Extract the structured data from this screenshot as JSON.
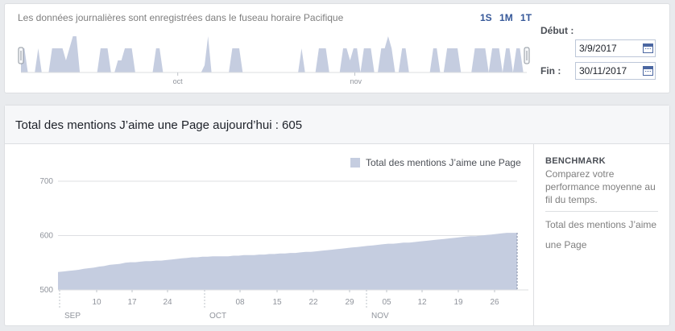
{
  "overview": {
    "info_text": "Les données journalières sont enregistrées dans le fuseau horaire Pacifique",
    "range_buttons": [
      "1S",
      "1M",
      "1T"
    ],
    "month_labels": [
      "oct",
      "nov"
    ],
    "start_label": "Début :",
    "start_value": "3/9/2017",
    "end_label": "Fin :",
    "end_value": "30/11/2017",
    "sparkline": [
      1,
      1,
      0,
      0,
      0,
      1,
      0,
      0,
      0,
      1,
      1,
      1,
      1,
      0.5,
      1,
      1.5,
      1.5,
      0,
      0,
      0,
      0,
      0,
      0,
      1,
      1,
      1,
      0,
      0,
      0.5,
      0.5,
      1,
      1,
      1,
      0,
      0,
      0,
      0,
      0,
      0,
      1,
      1,
      0,
      0,
      0,
      0,
      0,
      0,
      0,
      0,
      0,
      0,
      0,
      0,
      0.3,
      1.5,
      0,
      0,
      0,
      0,
      0,
      0,
      1,
      1,
      1,
      0,
      0,
      0,
      0,
      0,
      0,
      0,
      0,
      0,
      0,
      0,
      0,
      0,
      0,
      0,
      0,
      0,
      1,
      0,
      0,
      0,
      0,
      1,
      1,
      1,
      0,
      0,
      0,
      0,
      1,
      1,
      0.5,
      1,
      1,
      0,
      1,
      1,
      1,
      0,
      0,
      1,
      1,
      1.5,
      1,
      0,
      0,
      1,
      1,
      0,
      0,
      0,
      0,
      0,
      0,
      0,
      1,
      1,
      0,
      0,
      1,
      1,
      1,
      1,
      0,
      0,
      0,
      0,
      1,
      1,
      1,
      1,
      0,
      1,
      1,
      1,
      0,
      1,
      1,
      0,
      1,
      1,
      0,
      0
    ]
  },
  "main": {
    "title": "Total des mentions J’aime une Page aujourd’hui : 605"
  },
  "sidebar": {
    "benchmark_title": "BENCHMARK",
    "benchmark_desc": "Comparez votre performance moyenne au fil du temps.",
    "benchmark_metric": "Total des mentions J’aime une Page"
  },
  "colors": {
    "area_fill": "#c5cde0",
    "accent": "#365899",
    "grid": "#dddfe2"
  },
  "chart_data": {
    "type": "area",
    "title": "",
    "series": [
      {
        "name": "Total des mentions J’aime une Page",
        "values": [
          533,
          534,
          535,
          536,
          537,
          539,
          540,
          541,
          543,
          544,
          546,
          547,
          548,
          550,
          551,
          551,
          552,
          553,
          553,
          554,
          554,
          555,
          556,
          557,
          558,
          559,
          560,
          560,
          561,
          561,
          562,
          562,
          562,
          562,
          563,
          563,
          564,
          564,
          564,
          565,
          565,
          566,
          566,
          567,
          567,
          568,
          568,
          569,
          570,
          570,
          571,
          572,
          573,
          574,
          575,
          576,
          577,
          578,
          579,
          580,
          581,
          582,
          583,
          584,
          585,
          585,
          586,
          587,
          587,
          588,
          589,
          590,
          591,
          592,
          593,
          594,
          595,
          596,
          597,
          598,
          599,
          599,
          600,
          601,
          602,
          603,
          604,
          605,
          605,
          605
        ]
      }
    ],
    "x_start": "3/9/2017",
    "x_end": "30/11/2017",
    "x_tick_labels": [
      "10",
      "17",
      "24",
      "08",
      "15",
      "22",
      "29",
      "05",
      "12",
      "19",
      "26"
    ],
    "month_labels": [
      "SEP",
      "OCT",
      "NOV"
    ],
    "y_ticks": [
      500,
      600,
      700
    ],
    "ylim": [
      500,
      700
    ],
    "grid": true,
    "legend_position": "top-right"
  }
}
